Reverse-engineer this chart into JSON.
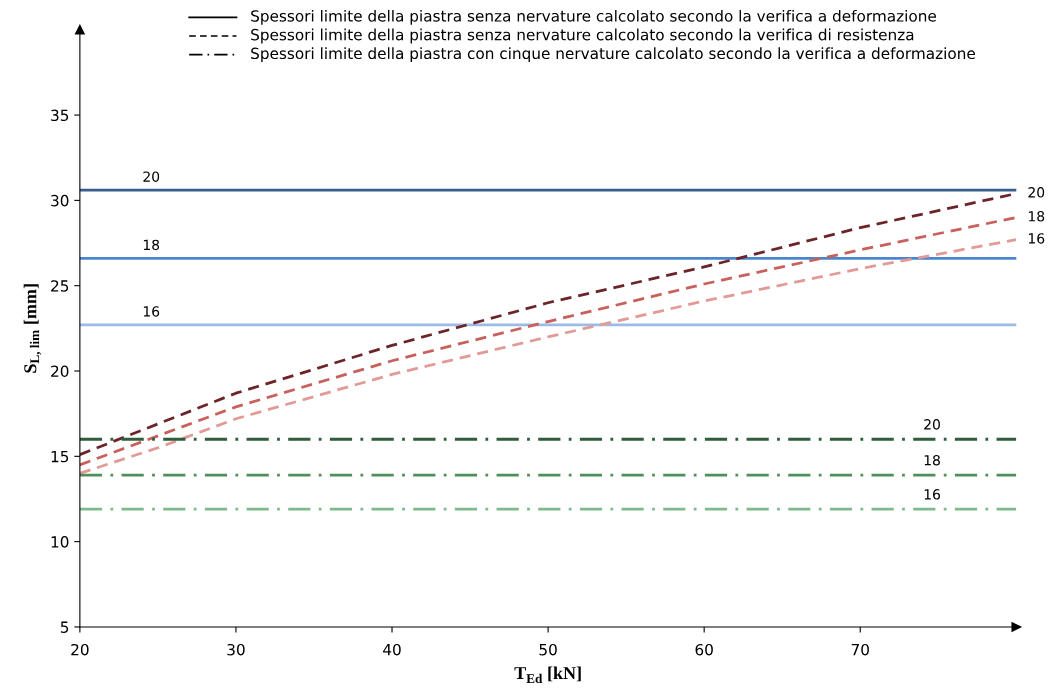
{
  "chart_data": {
    "type": "line",
    "xlabel": "T$_{Ed}$ [kN]",
    "ylabel": "S$_{L, lim}$ [mm]",
    "xlim": [
      20,
      80
    ],
    "xticks": [
      20,
      30,
      40,
      50,
      60,
      70
    ],
    "ylim": [
      5,
      40
    ],
    "yticks": [
      5,
      10,
      15,
      20,
      25,
      30,
      35
    ],
    "grid": false,
    "annotations": [
      "Spessori limite della piastra senza nervature calcolato secondo la verifica a deformazione",
      "Spessori limite della piastra senza nervature calcolato secondo la verifica di resistenza",
      "Spessori limite della piastra con cinque nervature calcolato secondo la verifica a deformazione"
    ],
    "series": [
      {
        "name": "20",
        "color": "#3a5f8f",
        "line_style": "solid",
        "x": [
          20,
          80
        ],
        "values": [
          30.6,
          30.6
        ]
      },
      {
        "name": "18",
        "color": "#4a86d0",
        "line_style": "solid",
        "x": [
          20,
          80
        ],
        "values": [
          26.6,
          26.6
        ]
      },
      {
        "name": "16",
        "color": "#9dbbe6",
        "line_style": "solid",
        "x": [
          20,
          80
        ],
        "values": [
          22.7,
          22.7
        ]
      },
      {
        "name": "20",
        "color": "#6b2528",
        "line_style": "dashed",
        "x": [
          20,
          25,
          30,
          40,
          50,
          60,
          70,
          80
        ],
        "values": [
          15.1,
          16.9,
          18.7,
          21.5,
          24.0,
          26.1,
          28.4,
          30.4
        ]
      },
      {
        "name": "18",
        "color": "#c8605c",
        "line_style": "dashed",
        "x": [
          20,
          25,
          30,
          40,
          50,
          60,
          70,
          80
        ],
        "values": [
          14.5,
          16.2,
          17.9,
          20.6,
          22.9,
          25.1,
          27.1,
          29.0
        ]
      },
      {
        "name": "16",
        "color": "#e29a96",
        "line_style": "dashed",
        "x": [
          20,
          25,
          30,
          40,
          50,
          60,
          70,
          80
        ],
        "values": [
          14.0,
          15.5,
          17.2,
          19.8,
          22.0,
          24.1,
          26.0,
          27.7
        ]
      },
      {
        "name": "20",
        "color": "#2f5e3a",
        "line_style": "dashdot",
        "x": [
          20,
          80
        ],
        "values": [
          16.0,
          16.0
        ]
      },
      {
        "name": "18",
        "color": "#4e8f5a",
        "line_style": "dashdot",
        "x": [
          20,
          80
        ],
        "values": [
          13.9,
          13.9
        ]
      },
      {
        "name": "16",
        "color": "#7dbb8a",
        "line_style": "dashdot",
        "x": [
          20,
          80
        ],
        "values": [
          11.9,
          11.9
        ]
      }
    ]
  }
}
